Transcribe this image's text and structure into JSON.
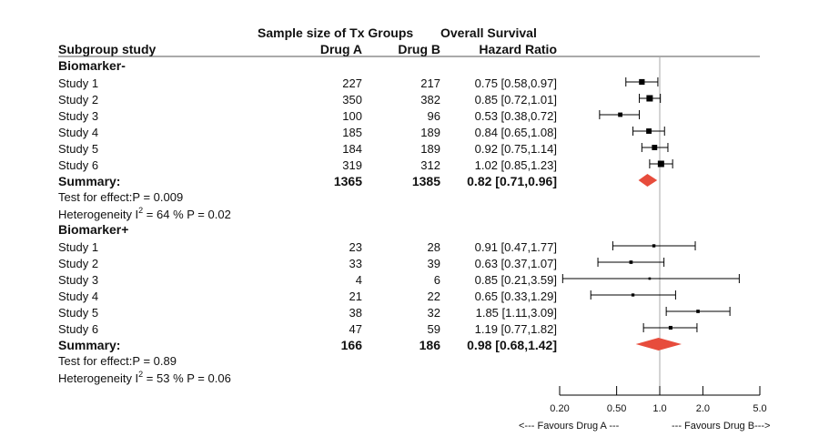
{
  "chart_data": {
    "type": "forest",
    "scale": "log",
    "xlim": [
      0.2,
      5.0
    ],
    "reference_line": 1.0,
    "header": {
      "group_top": "Sample size of Tx Groups",
      "hr_top": "Overall Survival",
      "col_study": "Subgroup study",
      "col_a": "Drug A",
      "col_b": "Drug B",
      "col_hr": "Hazard Ratio"
    },
    "x_ticks": [
      0.2,
      0.5,
      1.0,
      2.0,
      5.0
    ],
    "x_tick_labels": [
      "0.20",
      "0.50",
      "1.0",
      "2.0",
      "5.0"
    ],
    "favours_left": "<--- Favours Drug A ---",
    "favours_right": "--- Favours Drug B--->",
    "colors": {
      "summary": "#e74c3c",
      "line": "#000000",
      "ref": "#aaaaaa"
    },
    "groups": [
      {
        "name": "Biomarker-",
        "studies": [
          {
            "label": "Study 1",
            "a": "227",
            "b": "217",
            "hr_text": "0.75 [0.58,0.97]",
            "hr": 0.75,
            "lo": 0.58,
            "hi": 0.97
          },
          {
            "label": "Study 2",
            "a": "350",
            "b": "382",
            "hr_text": "0.85 [0.72,1.01]",
            "hr": 0.85,
            "lo": 0.72,
            "hi": 1.01
          },
          {
            "label": "Study 3",
            "a": "100",
            "b": "96",
            "hr_text": "0.53 [0.38,0.72]",
            "hr": 0.53,
            "lo": 0.38,
            "hi": 0.72
          },
          {
            "label": "Study 4",
            "a": "185",
            "b": "189",
            "hr_text": "0.84 [0.65,1.08]",
            "hr": 0.84,
            "lo": 0.65,
            "hi": 1.08
          },
          {
            "label": "Study 5",
            "a": "184",
            "b": "189",
            "hr_text": "0.92 [0.75,1.14]",
            "hr": 0.92,
            "lo": 0.75,
            "hi": 1.14
          },
          {
            "label": "Study 6",
            "a": "319",
            "b": "312",
            "hr_text": "1.02 [0.85,1.23]",
            "hr": 1.02,
            "lo": 0.85,
            "hi": 1.23
          }
        ],
        "summary": {
          "label": "Summary:",
          "a": "1365",
          "b": "1385",
          "hr_text": "0.82 [0.71,0.96]",
          "hr": 0.82,
          "lo": 0.71,
          "hi": 0.96
        },
        "test_effect": "Test for effect:P = 0.009",
        "heterogeneity_prefix": "Heterogeneity I",
        "heterogeneity_sup": "2",
        "heterogeneity_suffix": " = 64 % P = 0.02"
      },
      {
        "name": "Biomarker+",
        "studies": [
          {
            "label": "Study 1",
            "a": "23",
            "b": "28",
            "hr_text": "0.91 [0.47,1.77]",
            "hr": 0.91,
            "lo": 0.47,
            "hi": 1.77
          },
          {
            "label": "Study 2",
            "a": "33",
            "b": "39",
            "hr_text": "0.63 [0.37,1.07]",
            "hr": 0.63,
            "lo": 0.37,
            "hi": 1.07
          },
          {
            "label": "Study 3",
            "a": "4",
            "b": "6",
            "hr_text": "0.85 [0.21,3.59]",
            "hr": 0.85,
            "lo": 0.21,
            "hi": 3.59
          },
          {
            "label": "Study 4",
            "a": "21",
            "b": "22",
            "hr_text": "0.65 [0.33,1.29]",
            "hr": 0.65,
            "lo": 0.33,
            "hi": 1.29
          },
          {
            "label": "Study 5",
            "a": "38",
            "b": "32",
            "hr_text": "1.85 [1.11,3.09]",
            "hr": 1.85,
            "lo": 1.11,
            "hi": 3.09
          },
          {
            "label": "Study 6",
            "a": "47",
            "b": "59",
            "hr_text": "1.19 [0.77,1.82]",
            "hr": 1.19,
            "lo": 0.77,
            "hi": 1.82
          }
        ],
        "summary": {
          "label": "Summary:",
          "a": "166",
          "b": "186",
          "hr_text": "0.98 [0.68,1.42]",
          "hr": 0.98,
          "lo": 0.68,
          "hi": 1.42
        },
        "test_effect": "Test for effect:P = 0.89",
        "heterogeneity_prefix": "Heterogeneity I",
        "heterogeneity_sup": "2",
        "heterogeneity_suffix": " = 53 % P = 0.06"
      }
    ]
  }
}
